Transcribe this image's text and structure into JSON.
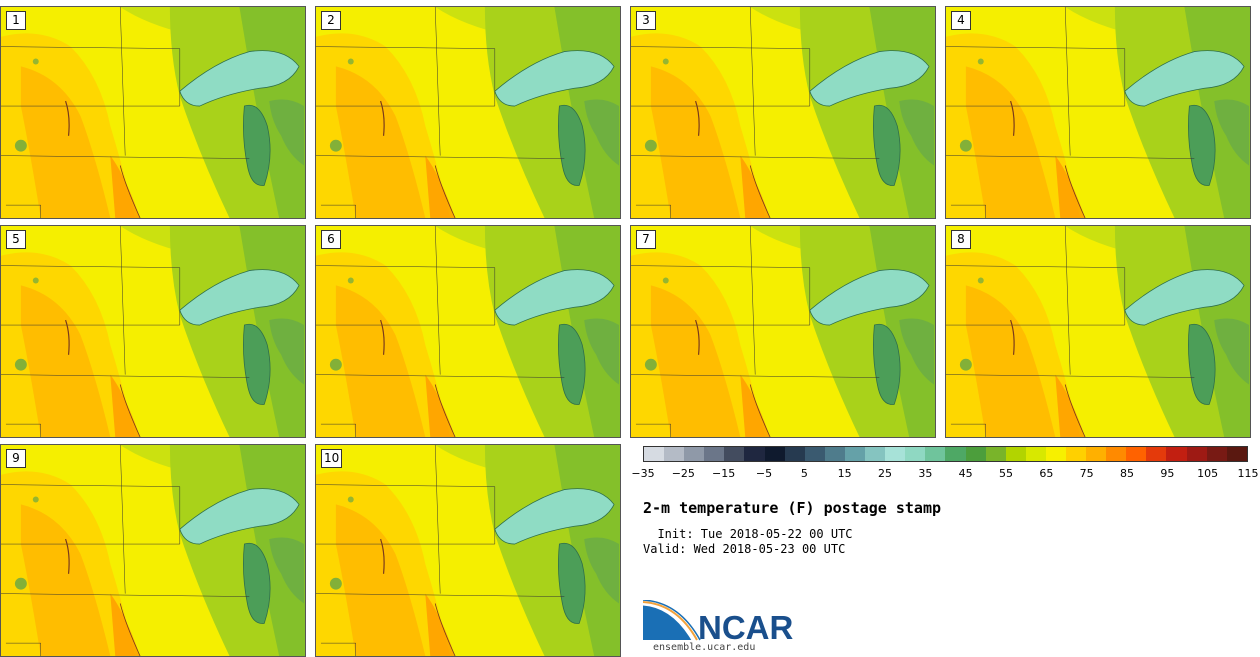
{
  "members": [
    "1",
    "2",
    "3",
    "4",
    "5",
    "6",
    "7",
    "8",
    "9",
    "10"
  ],
  "colorbar": {
    "colors": [
      "#d6dbe2",
      "#b4bbc6",
      "#8f99a8",
      "#6b7689",
      "#434c5f",
      "#1f2740",
      "#0f1a2e",
      "#263a50",
      "#3a5a70",
      "#4f7c8c",
      "#65a1a8",
      "#85c4c0",
      "#a7e2d8",
      "#8fd8c2",
      "#6fc49c",
      "#4ea865",
      "#4c9e3c",
      "#79b42a",
      "#b2d400",
      "#d8e800",
      "#f7f000",
      "#ffd000",
      "#ffb000",
      "#ff8a00",
      "#ff6200",
      "#e43a0b",
      "#c21f11",
      "#9e1a14",
      "#781a14",
      "#5a1810"
    ],
    "tick_labels": [
      "−35",
      "−25",
      "−15",
      "−5",
      "5",
      "15",
      "25",
      "35",
      "45",
      "55",
      "65",
      "75",
      "85",
      "95",
      "105",
      "115"
    ]
  },
  "title": "2-m temperature (F) postage stamp",
  "init_line": "  Init: Tue 2018-05-22 00 UTC",
  "valid_line": "Valid: Wed 2018-05-23 00 UTC",
  "logo_text": "NCAR",
  "url": "ensemble.ucar.edu"
}
